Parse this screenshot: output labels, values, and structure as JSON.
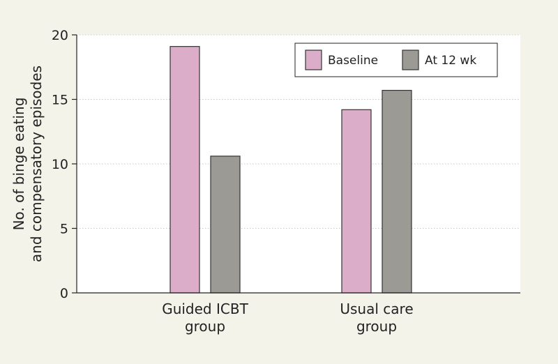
{
  "chart_data": {
    "type": "bar",
    "title": "",
    "ylabel_lines": [
      "No. of binge eating",
      "and compensatory episodes"
    ],
    "xlabel": "",
    "categories": [
      [
        "Guided ICBT",
        "group"
      ],
      [
        "Usual care",
        "group"
      ]
    ],
    "series": [
      {
        "name": "Baseline",
        "values": [
          19.1,
          14.2
        ],
        "color": "#dcadc8"
      },
      {
        "name": "At 12 wk",
        "values": [
          10.6,
          15.7
        ],
        "color": "#9c9a95"
      }
    ],
    "ylim": [
      0,
      20
    ],
    "yticks": [
      0,
      5,
      10,
      15,
      20
    ],
    "grid": "horizontal dotted",
    "legend_position": "top-right",
    "colors": {
      "background": "#f4f3ea",
      "plot_background": "#ffffff",
      "grid": "#c9c9c9",
      "bar_border": "#333333"
    }
  }
}
